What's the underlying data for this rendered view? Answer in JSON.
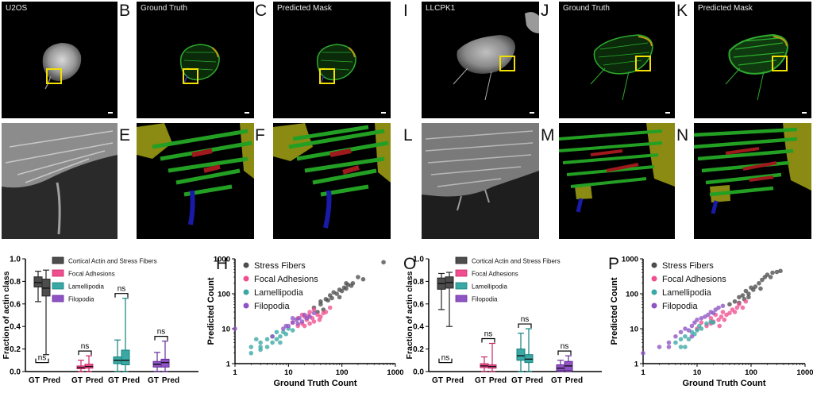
{
  "panels": {
    "B": "B",
    "C": "C",
    "E": "E",
    "F": "F",
    "H": "H",
    "I": "I",
    "J": "J",
    "K": "K",
    "L": "L",
    "M": "M",
    "N": "N",
    "O": "O",
    "P": "P"
  },
  "image_titles": {
    "a": "U2OS",
    "b": "Ground Truth",
    "c": "Predicted Mask",
    "i": "LLCPK1",
    "j": "Ground Truth",
    "k": "Predicted Mask"
  },
  "colors": {
    "stress_fibers": "#4d4d4d",
    "focal_adhesions": "#ef4f8f",
    "lamellipodia": "#3aa8a4",
    "filopodia": "#8e54c4",
    "mask_green": "#23a023",
    "mask_olive": "#8b8a12",
    "mask_red": "#a0191c",
    "mask_blue": "#1a1aa8",
    "roi_box": "#f2e000"
  },
  "chart_data": [
    {
      "id": "G",
      "type": "box",
      "ylabel": "Fraction of actin class",
      "ylim": [
        0,
        1
      ],
      "yticks": [
        "0.0",
        "0.2",
        "0.4",
        "0.6",
        "0.8",
        "1.0"
      ],
      "group_labels": [
        "GT",
        "Pred"
      ],
      "legend": [
        "Cortical Actin and Stress Fibers",
        "Focal Adhesions",
        "Lamellipodia",
        "Filopodia"
      ],
      "significance": [
        "ns",
        "ns",
        "ns",
        "ns"
      ],
      "boxes": [
        {
          "class": "stress_fibers",
          "group": "GT",
          "min": 0.62,
          "q1": 0.75,
          "median": 0.79,
          "q3": 0.84,
          "max": 0.89
        },
        {
          "class": "stress_fibers",
          "group": "Pred",
          "min": 0.15,
          "q1": 0.67,
          "median": 0.74,
          "q3": 0.82,
          "max": 0.9
        },
        {
          "class": "focal_adhesions",
          "group": "GT",
          "min": 0.0,
          "q1": 0.025,
          "median": 0.035,
          "q3": 0.05,
          "max": 0.1
        },
        {
          "class": "focal_adhesions",
          "group": "Pred",
          "min": 0.0,
          "q1": 0.03,
          "median": 0.045,
          "q3": 0.065,
          "max": 0.14
        },
        {
          "class": "lamellipodia",
          "group": "GT",
          "min": 0.0,
          "q1": 0.07,
          "median": 0.1,
          "q3": 0.13,
          "max": 0.28
        },
        {
          "class": "lamellipodia",
          "group": "Pred",
          "min": 0.0,
          "q1": 0.06,
          "median": 0.1,
          "q3": 0.19,
          "max": 0.65
        },
        {
          "class": "filopodia",
          "group": "GT",
          "min": 0.0,
          "q1": 0.04,
          "median": 0.065,
          "q3": 0.09,
          "max": 0.17
        },
        {
          "class": "filopodia",
          "group": "Pred",
          "min": 0.0,
          "q1": 0.04,
          "median": 0.08,
          "q3": 0.11,
          "max": 0.27
        }
      ]
    },
    {
      "id": "H",
      "type": "scatter",
      "xlabel": "Ground Truth Count",
      "ylabel": "Predicted Count",
      "xscale": "log",
      "yscale": "log",
      "xlim": [
        1,
        1000
      ],
      "ylim": [
        1,
        1000
      ],
      "xticks": [
        "1",
        "10",
        "100",
        "1000"
      ],
      "yticks": [
        "1",
        "10",
        "100",
        "1000"
      ],
      "series": [
        {
          "name": "Stress Fibers",
          "class": "stress_fibers",
          "points": [
            [
              30,
              40
            ],
            [
              40,
              60
            ],
            [
              50,
              70
            ],
            [
              60,
              90
            ],
            [
              70,
              110
            ],
            [
              80,
              100
            ],
            [
              90,
              130
            ],
            [
              100,
              120
            ],
            [
              110,
              150
            ],
            [
              120,
              140
            ],
            [
              130,
              180
            ],
            [
              150,
              170
            ],
            [
              200,
              300
            ],
            [
              250,
              260
            ],
            [
              600,
              800
            ],
            [
              40,
              50
            ],
            [
              55,
              65
            ],
            [
              45,
              35
            ],
            [
              35,
              30
            ],
            [
              90,
              80
            ],
            [
              65,
              75
            ],
            [
              120,
              200
            ],
            [
              160,
              200
            ]
          ]
        },
        {
          "name": "Focal Adhesions",
          "class": "focal_adhesions",
          "points": [
            [
              12,
              15
            ],
            [
              15,
              20
            ],
            [
              18,
              14
            ],
            [
              20,
              22
            ],
            [
              22,
              18
            ],
            [
              25,
              30
            ],
            [
              28,
              20
            ],
            [
              30,
              16
            ],
            [
              35,
              25
            ],
            [
              40,
              22
            ],
            [
              45,
              28
            ],
            [
              50,
              30
            ],
            [
              20,
              12
            ],
            [
              25,
              14
            ],
            [
              18,
              25
            ],
            [
              30,
              35
            ],
            [
              60,
              40
            ],
            [
              15,
              12
            ],
            [
              24,
              24
            ],
            [
              38,
              18
            ]
          ]
        },
        {
          "name": "Lamellipodia",
          "class": "lamellipodia",
          "points": [
            [
              2,
              2
            ],
            [
              2,
              3
            ],
            [
              3,
              2.5
            ],
            [
              3,
              4
            ],
            [
              4,
              3
            ],
            [
              4,
              5
            ],
            [
              5,
              4
            ],
            [
              5,
              6
            ],
            [
              6,
              5
            ],
            [
              7,
              6
            ],
            [
              8,
              8
            ],
            [
              9,
              7
            ],
            [
              10,
              10
            ],
            [
              12,
              9
            ],
            [
              3,
              3
            ],
            [
              6,
              8
            ],
            [
              2.5,
              5
            ],
            [
              7,
              4
            ]
          ]
        },
        {
          "name": "Filopodia",
          "class": "filopodia",
          "points": [
            [
              1,
              10
            ],
            [
              5,
              6
            ],
            [
              8,
              10
            ],
            [
              10,
              12
            ],
            [
              12,
              15
            ],
            [
              14,
              18
            ],
            [
              16,
              20
            ],
            [
              18,
              16
            ],
            [
              20,
              25
            ],
            [
              22,
              20
            ],
            [
              25,
              22
            ],
            [
              30,
              28
            ],
            [
              15,
              14
            ],
            [
              12,
              20
            ],
            [
              9,
              12
            ]
          ]
        }
      ]
    },
    {
      "id": "O",
      "type": "box",
      "ylabel": "Fraction of actin class",
      "ylim": [
        0,
        1
      ],
      "yticks": [
        "0.0",
        "0.2",
        "0.4",
        "0.6",
        "0.8",
        "1.0"
      ],
      "group_labels": [
        "GT",
        "Pred"
      ],
      "legend": [
        "Cortical Actin and Stress Fibers",
        "Focal Adhesions",
        "Lamellipodia",
        "Filopodia"
      ],
      "significance": [
        "ns",
        "ns",
        "ns",
        "ns"
      ],
      "boxes": [
        {
          "class": "stress_fibers",
          "group": "GT",
          "min": 0.55,
          "q1": 0.73,
          "median": 0.78,
          "q3": 0.83,
          "max": 0.87
        },
        {
          "class": "stress_fibers",
          "group": "Pred",
          "min": 0.4,
          "q1": 0.74,
          "median": 0.79,
          "q3": 0.84,
          "max": 0.88
        },
        {
          "class": "focal_adhesions",
          "group": "GT",
          "min": 0.0,
          "q1": 0.035,
          "median": 0.05,
          "q3": 0.07,
          "max": 0.13
        },
        {
          "class": "focal_adhesions",
          "group": "Pred",
          "min": 0.0,
          "q1": 0.03,
          "median": 0.045,
          "q3": 0.06,
          "max": 0.25
        },
        {
          "class": "lamellipodia",
          "group": "GT",
          "min": 0.0,
          "q1": 0.1,
          "median": 0.14,
          "q3": 0.2,
          "max": 0.34
        },
        {
          "class": "lamellipodia",
          "group": "Pred",
          "min": 0.0,
          "q1": 0.08,
          "median": 0.11,
          "q3": 0.15,
          "max": 0.38
        },
        {
          "class": "filopodia",
          "group": "GT",
          "min": 0.0,
          "q1": 0.01,
          "median": 0.03,
          "q3": 0.06,
          "max": 0.1
        },
        {
          "class": "filopodia",
          "group": "Pred",
          "min": 0.0,
          "q1": 0.01,
          "median": 0.05,
          "q3": 0.09,
          "max": 0.14
        }
      ]
    },
    {
      "id": "P",
      "type": "scatter",
      "xlabel": "Ground Truth Count",
      "ylabel": "Predicted Count",
      "xscale": "log",
      "yscale": "log",
      "xlim": [
        1,
        1000
      ],
      "ylim": [
        1,
        1000
      ],
      "xticks": [
        "1",
        "10",
        "100",
        "1000"
      ],
      "yticks": [
        "1",
        "10",
        "100",
        "1000"
      ],
      "series": [
        {
          "name": "Stress Fibers",
          "class": "stress_fibers",
          "points": [
            [
              40,
              50
            ],
            [
              50,
              60
            ],
            [
              60,
              80
            ],
            [
              70,
              90
            ],
            [
              80,
              120
            ],
            [
              90,
              100
            ],
            [
              100,
              150
            ],
            [
              120,
              160
            ],
            [
              140,
              200
            ],
            [
              160,
              250
            ],
            [
              180,
              300
            ],
            [
              200,
              350
            ],
            [
              250,
              400
            ],
            [
              300,
              420
            ],
            [
              350,
              450
            ],
            [
              60,
              55
            ],
            [
              75,
              70
            ],
            [
              110,
              130
            ],
            [
              90,
              80
            ],
            [
              230,
              300
            ],
            [
              150,
              140
            ]
          ]
        },
        {
          "name": "Focal Adhesions",
          "class": "focal_adhesions",
          "points": [
            [
              10,
              10
            ],
            [
              12,
              15
            ],
            [
              15,
              12
            ],
            [
              18,
              20
            ],
            [
              20,
              16
            ],
            [
              22,
              25
            ],
            [
              25,
              18
            ],
            [
              28,
              22
            ],
            [
              30,
              30
            ],
            [
              35,
              25
            ],
            [
              40,
              28
            ],
            [
              45,
              35
            ],
            [
              50,
              30
            ],
            [
              55,
              40
            ],
            [
              60,
              50
            ],
            [
              70,
              40
            ],
            [
              80,
              60
            ],
            [
              18,
              14
            ],
            [
              32,
              18
            ],
            [
              26,
              12
            ]
          ]
        },
        {
          "name": "Lamellipodia",
          "class": "lamellipodia",
          "points": [
            [
              4,
              4
            ],
            [
              5,
              5
            ],
            [
              5,
              3
            ],
            [
              6,
              6
            ],
            [
              7,
              5
            ],
            [
              8,
              8
            ],
            [
              9,
              7
            ],
            [
              10,
              9
            ],
            [
              12,
              10
            ],
            [
              15,
              14
            ],
            [
              18,
              16
            ],
            [
              20,
              15
            ],
            [
              6,
              3
            ],
            [
              11,
              12
            ]
          ]
        },
        {
          "name": "Filopodia",
          "class": "filopodia",
          "points": [
            [
              1,
              2
            ],
            [
              2,
              3
            ],
            [
              3,
              4
            ],
            [
              4,
              6
            ],
            [
              5,
              8
            ],
            [
              6,
              10
            ],
            [
              7,
              9
            ],
            [
              8,
              12
            ],
            [
              9,
              15
            ],
            [
              10,
              18
            ],
            [
              12,
              20
            ],
            [
              14,
              22
            ],
            [
              16,
              25
            ],
            [
              18,
              30
            ],
            [
              20,
              28
            ],
            [
              22,
              35
            ],
            [
              25,
              40
            ],
            [
              30,
              45
            ],
            [
              8,
              6
            ],
            [
              3,
              3
            ]
          ]
        }
      ]
    }
  ]
}
